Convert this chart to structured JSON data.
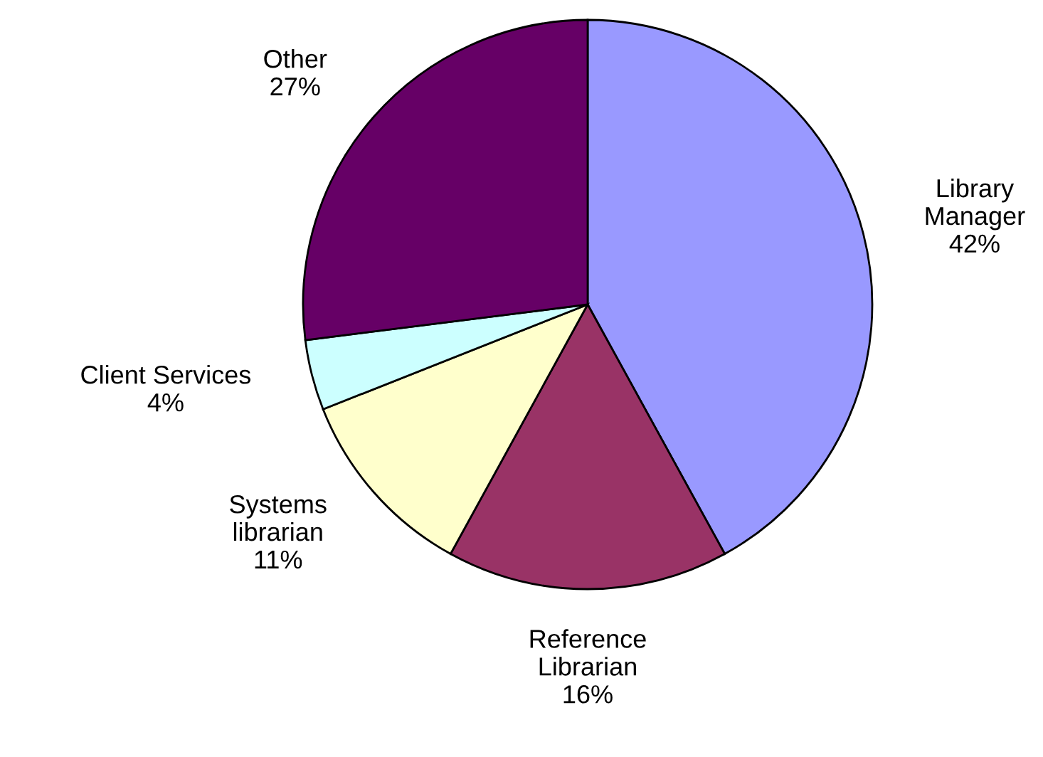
{
  "chart_data": {
    "type": "pie",
    "categories": [
      "Library\nManager",
      "Reference\nLibrarian",
      "Systems\nlibrarian",
      "Client Services",
      "Other"
    ],
    "values": [
      42,
      16,
      11,
      4,
      27
    ],
    "value_labels": [
      "42%",
      "16%",
      "11%",
      "4%",
      "27%"
    ],
    "colors": [
      "#9999ff",
      "#993366",
      "#ffffcc",
      "#ccffff",
      "#660066"
    ],
    "legend": false
  }
}
